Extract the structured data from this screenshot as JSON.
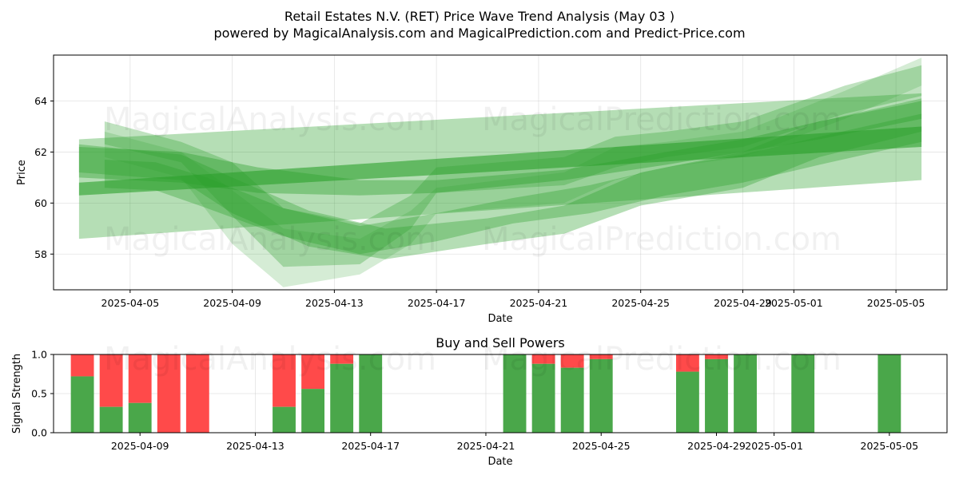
{
  "chart_data": [
    {
      "type": "area",
      "title": "Retail Estates N.V. (RET) Price Wave Trend Analysis (May 03 )",
      "subtitle": "powered by MagicalAnalysis.com and MagicalPrediction.com and Predict-Price.com",
      "xlabel": "Date",
      "ylabel": "Price",
      "ylim": [
        56.6,
        65.8
      ],
      "yticks": [
        58,
        60,
        62,
        64
      ],
      "xlim": [
        "2025-04-02",
        "2025-05-07"
      ],
      "xticks": [
        "2025-04-05",
        "2025-04-09",
        "2025-04-13",
        "2025-04-17",
        "2025-04-21",
        "2025-04-25",
        "2025-04-29",
        "2025-05-01",
        "2025-05-05"
      ],
      "grid": true,
      "color": "#2ca02c",
      "watermarks": [
        "MagicalAnalysis.com",
        "MagicalPrediction.com",
        "MagicalAnalysis.com",
        "MagicalPrediction.com"
      ],
      "bands": [
        {
          "x": [
            "2025-04-03",
            "2025-05-06"
          ],
          "upper": [
            62.5,
            64.3
          ],
          "lower": [
            58.6,
            60.9
          ],
          "alpha": 0.35
        },
        {
          "x": [
            "2025-04-03",
            "2025-05-06"
          ],
          "upper": [
            60.8,
            63.0
          ],
          "lower": [
            60.3,
            62.2
          ],
          "alpha": 0.6
        },
        {
          "x": [
            "2025-04-03",
            "2025-04-07",
            "2025-04-10",
            "2025-04-14",
            "2025-04-17",
            "2025-04-22",
            "2025-04-26",
            "2025-04-29",
            "2025-05-02",
            "2025-05-06"
          ],
          "upper": [
            62.2,
            62.0,
            61.4,
            60.9,
            60.9,
            61.3,
            62.0,
            62.5,
            63.2,
            64.0
          ],
          "lower": [
            61.0,
            60.8,
            60.4,
            60.3,
            60.4,
            60.9,
            61.5,
            62.0,
            62.5,
            63.3
          ],
          "alpha": 0.4
        },
        {
          "x": [
            "2025-04-04",
            "2025-04-07",
            "2025-04-09",
            "2025-04-11",
            "2025-04-14",
            "2025-04-16",
            "2025-04-17",
            "2025-04-22",
            "2025-04-24",
            "2025-04-26",
            "2025-04-29",
            "2025-05-03",
            "2025-05-06"
          ],
          "upper": [
            63.2,
            62.4,
            61.6,
            59.8,
            59.2,
            60.3,
            61.4,
            61.8,
            62.6,
            62.8,
            63.2,
            64.6,
            65.4
          ],
          "lower": [
            62.3,
            61.6,
            59.5,
            57.5,
            57.6,
            59.0,
            60.4,
            60.7,
            61.4,
            61.8,
            62.2,
            63.5,
            64.2
          ],
          "alpha": 0.3
        },
        {
          "x": [
            "2025-04-04",
            "2025-04-07",
            "2025-04-09",
            "2025-04-11",
            "2025-04-14",
            "2025-04-16",
            "2025-04-17",
            "2025-04-22",
            "2025-04-24",
            "2025-04-26",
            "2025-04-29",
            "2025-05-03",
            "2025-05-06"
          ],
          "upper": [
            62.8,
            62.0,
            60.5,
            59.0,
            58.6,
            59.7,
            60.6,
            61.2,
            62.2,
            62.4,
            62.8,
            64.4,
            65.7
          ],
          "lower": [
            61.8,
            61.0,
            58.4,
            56.7,
            57.2,
            58.4,
            59.6,
            60.0,
            60.9,
            61.4,
            61.8,
            63.3,
            64.6
          ],
          "alpha": 0.2
        },
        {
          "x": [
            "2025-04-03",
            "2025-04-07",
            "2025-04-09",
            "2025-04-12",
            "2025-04-15",
            "2025-04-19",
            "2025-04-22",
            "2025-04-25",
            "2025-04-29",
            "2025-05-02",
            "2025-05-06"
          ],
          "upper": [
            62.3,
            61.9,
            61.0,
            59.7,
            59.0,
            59.4,
            59.9,
            61.2,
            62.0,
            63.2,
            64.1
          ],
          "lower": [
            61.2,
            60.9,
            59.6,
            58.3,
            57.8,
            58.4,
            58.8,
            59.9,
            60.6,
            61.8,
            62.8
          ],
          "alpha": 0.35
        },
        {
          "x": [
            "2025-04-04",
            "2025-04-06",
            "2025-04-08",
            "2025-04-11",
            "2025-04-14",
            "2025-04-17",
            "2025-04-20",
            "2025-04-23",
            "2025-04-26",
            "2025-04-29",
            "2025-05-02",
            "2025-05-06"
          ],
          "upper": [
            61.7,
            61.6,
            61.0,
            59.8,
            59.1,
            59.6,
            60.2,
            60.7,
            61.4,
            61.9,
            62.6,
            63.5
          ],
          "lower": [
            60.6,
            60.5,
            59.8,
            58.7,
            58.0,
            58.5,
            59.2,
            59.6,
            60.3,
            60.8,
            61.5,
            62.4
          ],
          "alpha": 0.35
        }
      ]
    },
    {
      "type": "bar",
      "title": "Buy and Sell Powers",
      "xlabel": "Date",
      "ylabel": "Signal Strength",
      "ylim": [
        0.0,
        1.0
      ],
      "yticks": [
        "0.0",
        "0.5",
        "1.0"
      ],
      "xlim": [
        "2025-04-06",
        "2025-05-07"
      ],
      "xticks": [
        "2025-04-09",
        "2025-04-13",
        "2025-04-17",
        "2025-04-21",
        "2025-04-25",
        "2025-04-29",
        "2025-05-01",
        "2025-05-05"
      ],
      "grid": true,
      "series": [
        {
          "name": "Buy",
          "color": "#4aa74a"
        },
        {
          "name": "Sell",
          "color": "#ff4a4a"
        }
      ],
      "dates": [
        "2025-04-07",
        "2025-04-08",
        "2025-04-09",
        "2025-04-10",
        "2025-04-11",
        "2025-04-14",
        "2025-04-15",
        "2025-04-16",
        "2025-04-17",
        "2025-04-22",
        "2025-04-23",
        "2025-04-24",
        "2025-04-25",
        "2025-04-28",
        "2025-04-29",
        "2025-04-30",
        "2025-05-02",
        "2025-05-05"
      ],
      "buy": [
        0.72,
        0.33,
        0.38,
        0.0,
        0.0,
        0.33,
        0.56,
        0.88,
        1.0,
        1.0,
        0.88,
        0.83,
        0.94,
        0.78,
        0.94,
        1.0,
        1.0,
        1.0
      ],
      "watermarks": [
        "MagicalAnalysis.com",
        "MagicalPrediction.com"
      ]
    }
  ]
}
